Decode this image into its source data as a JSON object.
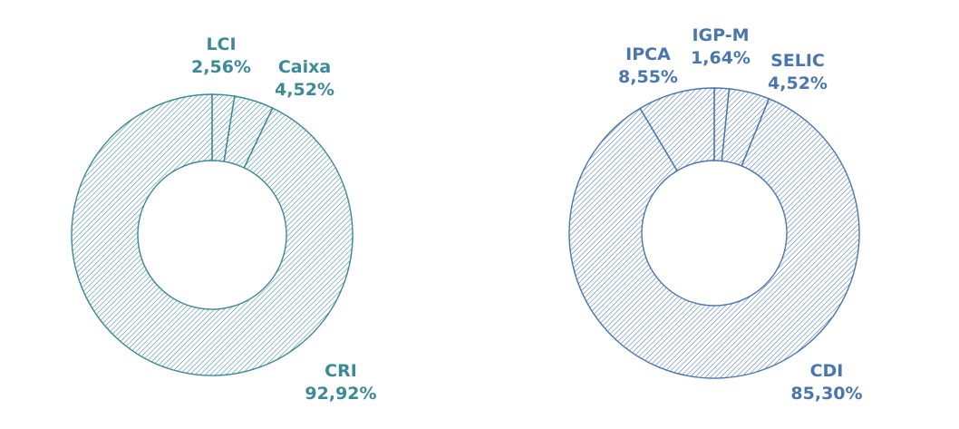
{
  "chart_data": [
    {
      "type": "pie",
      "donut": true,
      "color": "#3a8a98",
      "slices": [
        {
          "label": "LCI",
          "value": 2.56,
          "value_text": "2,56%"
        },
        {
          "label": "Caixa",
          "value": 4.52,
          "value_text": "4,52%"
        },
        {
          "label": "CRI",
          "value": 92.92,
          "value_text": "92,92%"
        }
      ]
    },
    {
      "type": "pie",
      "donut": true,
      "color": "#4a76b0",
      "slices": [
        {
          "label": "IGP-M",
          "value": 1.64,
          "value_text": "1,64%"
        },
        {
          "label": "SELIC",
          "value": 4.52,
          "value_text": "4,52%"
        },
        {
          "label": "CDI",
          "value": 85.3,
          "value_text": "85,30%"
        },
        {
          "label": "IPCA",
          "value": 8.55,
          "value_text": "8,55%"
        }
      ]
    }
  ]
}
